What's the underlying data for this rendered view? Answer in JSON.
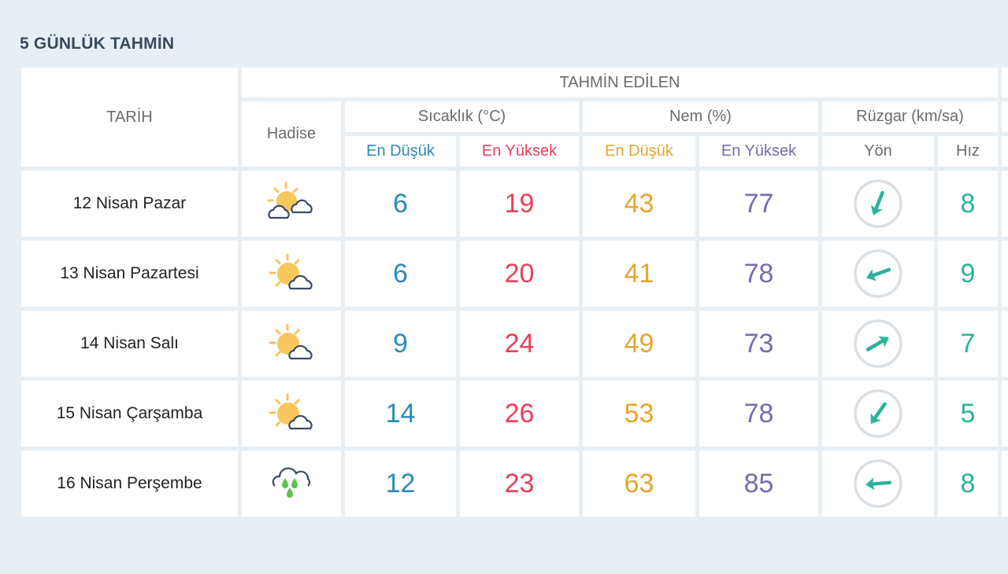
{
  "title": "5 GÜNLÜK TAHMİN",
  "headers": {
    "date": "TARİH",
    "forecast": "TAHMİN EDİLEN",
    "condition": "Hadise",
    "temperature": "Sıcaklık (°C)",
    "humidity": "Nem (%)",
    "wind": "Rüzgar (km/sa)",
    "min": "En Düşük",
    "max": "En Yüksek",
    "direction": "Yön",
    "speed": "Hız"
  },
  "colors": {
    "temp_min": "#2a8bb8",
    "temp_max": "#e8405a",
    "hum_min": "#e6a52e",
    "hum_max": "#7a6aae",
    "wind": "#2bb39a"
  },
  "days": [
    {
      "date": "12 Nisan Pazar",
      "icon": "sun-two-clouds-icon",
      "temp_min": "6",
      "temp_max": "19",
      "hum_min": "43",
      "hum_max": "77",
      "wind_direction_deg": 112,
      "wind_speed": "8"
    },
    {
      "date": "13 Nisan Pazartesi",
      "icon": "partly-cloudy-icon",
      "temp_min": "6",
      "temp_max": "20",
      "hum_min": "41",
      "hum_max": "78",
      "wind_direction_deg": 160,
      "wind_speed": "9"
    },
    {
      "date": "14 Nisan Salı",
      "icon": "partly-cloudy-icon",
      "temp_min": "9",
      "temp_max": "24",
      "hum_min": "49",
      "hum_max": "73",
      "wind_direction_deg": -30,
      "wind_speed": "7"
    },
    {
      "date": "15 Nisan Çarşamba",
      "icon": "partly-cloudy-icon",
      "temp_min": "14",
      "temp_max": "26",
      "hum_min": "53",
      "hum_max": "78",
      "wind_direction_deg": 125,
      "wind_speed": "5"
    },
    {
      "date": "16 Nisan Perşembe",
      "icon": "rain-cloud-icon",
      "temp_min": "12",
      "temp_max": "23",
      "hum_min": "63",
      "hum_max": "85",
      "wind_direction_deg": 175,
      "wind_speed": "8"
    }
  ]
}
